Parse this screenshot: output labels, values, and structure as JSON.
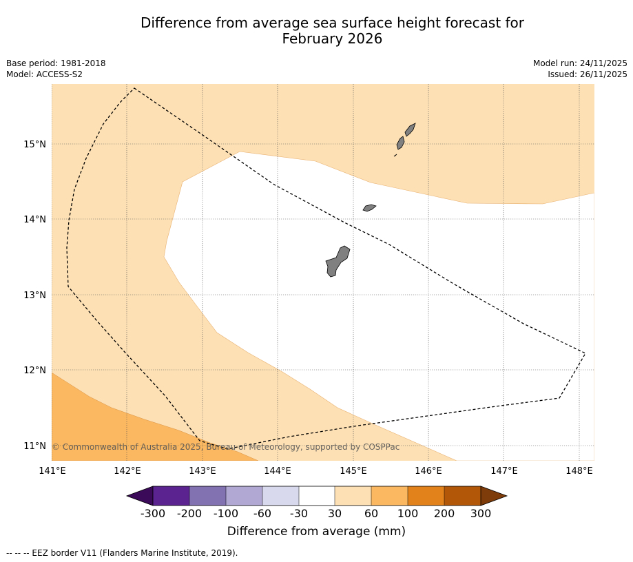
{
  "title_line1": "Difference from average sea surface height forecast for",
  "title_line2": "February 2026",
  "base_period": "Base period: 1981-2018",
  "model": "Model: ACCESS-S2",
  "model_run": "Model run: 24/11/2025",
  "issued": "Issued: 26/11/2025",
  "copyright": "© Commonwealth of Australia 2025, Bureau of Meteorology, supported by COSPPac",
  "lon_ticks": [
    "141°E",
    "142°E",
    "143°E",
    "144°E",
    "145°E",
    "146°E",
    "147°E",
    "148°E"
  ],
  "lat_ticks": [
    "15°N",
    "14°N",
    "13°N",
    "12°N",
    "11°N"
  ],
  "colorbar": {
    "label": "Difference from average (mm)",
    "ticks": [
      "-300",
      "-200",
      "-100",
      "-60",
      "-30",
      "30",
      "60",
      "100",
      "200",
      "300"
    ],
    "colors": [
      "#5a2390",
      "#8272b2",
      "#b1a8d3",
      "#d8d9ec",
      "#ffffff",
      "#fde0b4",
      "#fbb860",
      "#e2821a",
      "#b25708"
    ],
    "under_color": "#3b0a58",
    "over_color": "#7e3c0a"
  },
  "legend_footer": "--  --  -- EEZ border V11 (Flanders Marine Institute, 2019).",
  "colors": {
    "band_30_60": "#fde0b4",
    "band_60_100": "#fbb860",
    "land": "#808080"
  }
}
